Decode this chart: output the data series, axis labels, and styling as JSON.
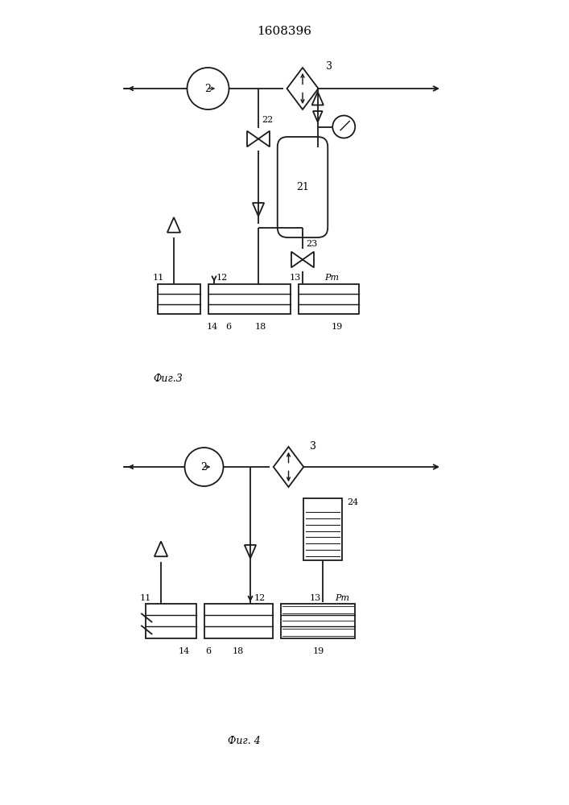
{
  "title": "1608396",
  "title_fontsize": 11,
  "fig3_label": "Фиг.3",
  "fig4_label": "Фиг. 4",
  "bg_color": "#ffffff",
  "line_color": "#1a1a1a",
  "lw": 1.3
}
